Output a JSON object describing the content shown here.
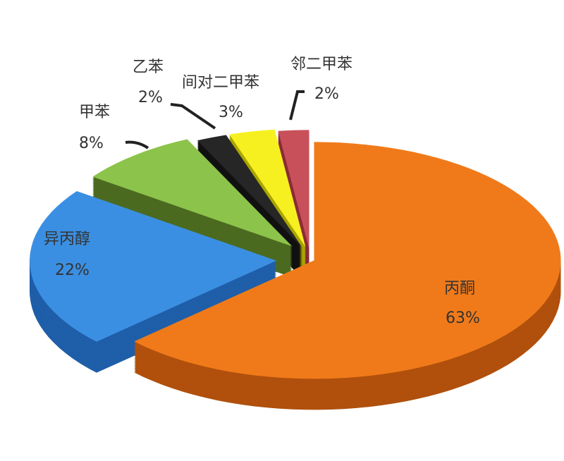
{
  "chart_data": {
    "type": "pie",
    "style": "3d-exploded",
    "legend": "none",
    "slices": [
      {
        "label": "丙酮",
        "value": 63,
        "pct_label": "63%",
        "color": "#f07a1a",
        "side": "#b0500c"
      },
      {
        "label": "异丙醇",
        "value": 22,
        "pct_label": "22%",
        "color": "#3b8fe2",
        "side": "#1f5ea8"
      },
      {
        "label": "甲苯",
        "value": 8,
        "pct_label": "8%",
        "color": "#8cc34a",
        "side": "#4b6a20"
      },
      {
        "label": "乙苯",
        "value": 2,
        "pct_label": "2%",
        "color": "#262626",
        "side": "#111111"
      },
      {
        "label": "间对二甲苯",
        "value": 3,
        "pct_label": "3%",
        "color": "#f7f020",
        "side": "#aaa500"
      },
      {
        "label": "邻二甲苯",
        "value": 2,
        "pct_label": "2%",
        "color": "#c8505a",
        "side": "#8a2c35"
      }
    ]
  }
}
